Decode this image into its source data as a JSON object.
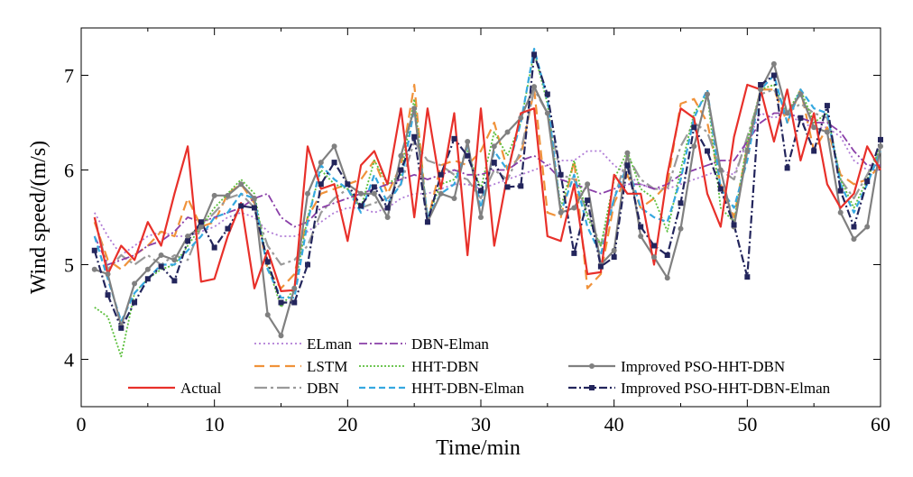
{
  "chart_data": {
    "type": "line",
    "xlabel": "Time/min",
    "ylabel": "Wind speed/(m/s)",
    "xlim": [
      0,
      60
    ],
    "ylim": [
      3.5,
      7.5
    ],
    "xticks": [
      "0",
      "10",
      "20",
      "30",
      "40",
      "50",
      "60"
    ],
    "yticks": [
      "4",
      "5",
      "6",
      "7"
    ],
    "grid": false,
    "legend_position": "bottom",
    "x": [
      1,
      2,
      3,
      4,
      5,
      6,
      7,
      8,
      9,
      10,
      11,
      12,
      13,
      14,
      15,
      16,
      17,
      18,
      19,
      20,
      21,
      22,
      23,
      24,
      25,
      26,
      27,
      28,
      29,
      30,
      31,
      32,
      33,
      34,
      35,
      36,
      37,
      38,
      39,
      40,
      41,
      42,
      43,
      44,
      45,
      46,
      47,
      48,
      49,
      50,
      51,
      52,
      53,
      54,
      55,
      56,
      57,
      58,
      59,
      60
    ],
    "series": [
      {
        "name": "Actual",
        "color": "#e8302a",
        "dash": "",
        "marker": "none",
        "width": 2.2,
        "values": [
          5.5,
          4.9,
          5.2,
          5.05,
          5.45,
          5.2,
          5.75,
          6.25,
          4.82,
          4.85,
          5.3,
          5.65,
          4.75,
          5.15,
          4.72,
          4.73,
          6.25,
          5.8,
          5.85,
          5.25,
          6.05,
          6.2,
          5.85,
          6.65,
          5.5,
          6.65,
          5.8,
          6.6,
          5.1,
          6.65,
          5.2,
          5.95,
          6.6,
          6.65,
          5.3,
          5.25,
          5.85,
          4.9,
          4.92,
          5.95,
          5.75,
          5.75,
          5.0,
          5.95,
          6.65,
          6.55,
          5.75,
          5.4,
          6.35,
          6.9,
          6.85,
          6.3,
          6.85,
          6.1,
          6.6,
          5.85,
          5.6,
          5.75,
          6.25,
          6.0
        ]
      },
      {
        "name": "ELman",
        "color": "#b07cd6",
        "dash": "2 3",
        "marker": "none",
        "width": 1.8,
        "values": [
          5.55,
          5.3,
          5.1,
          5.2,
          5.3,
          5.35,
          5.3,
          5.3,
          5.35,
          5.4,
          5.5,
          5.55,
          5.5,
          5.35,
          5.3,
          5.3,
          5.35,
          5.45,
          5.55,
          5.6,
          5.6,
          5.55,
          5.6,
          5.7,
          5.75,
          5.75,
          5.8,
          5.85,
          5.85,
          5.8,
          5.85,
          5.9,
          5.95,
          6.0,
          6.05,
          6.1,
          6.1,
          6.2,
          6.2,
          6.05,
          5.95,
          5.85,
          5.8,
          5.8,
          5.85,
          5.9,
          5.95,
          6.0,
          5.95,
          6.3,
          6.6,
          6.55,
          6.6,
          6.5,
          6.45,
          6.45,
          6.35,
          6.1,
          6.0,
          6.0
        ]
      },
      {
        "name": "LSTM",
        "color": "#f0923a",
        "dash": "11 6",
        "marker": "none",
        "width": 2.2,
        "values": [
          5.45,
          5.05,
          4.95,
          5.1,
          5.2,
          5.35,
          5.3,
          5.7,
          5.4,
          5.45,
          5.75,
          5.85,
          5.65,
          4.95,
          4.75,
          4.9,
          5.5,
          5.75,
          5.8,
          5.85,
          5.9,
          6.1,
          5.75,
          6.05,
          6.9,
          5.45,
          6.05,
          6.1,
          6.05,
          6.2,
          6.5,
          6.0,
          6.15,
          6.85,
          5.55,
          5.5,
          6.1,
          4.75,
          4.9,
          5.65,
          5.95,
          5.6,
          5.7,
          5.85,
          6.7,
          6.75,
          6.5,
          5.85,
          5.5,
          6.25,
          6.85,
          6.85,
          6.5,
          6.85,
          6.2,
          6.45,
          5.95,
          5.85,
          5.9,
          6.05
        ]
      },
      {
        "name": "DBN",
        "color": "#9a9a9a",
        "dash": "14 4 3 4",
        "marker": "none",
        "width": 2.2,
        "values": [
          5.5,
          4.95,
          5.1,
          5.0,
          5.1,
          5.0,
          5.1,
          5.05,
          5.4,
          5.55,
          5.7,
          5.75,
          5.6,
          5.2,
          5.0,
          5.05,
          5.2,
          5.55,
          5.7,
          5.8,
          5.6,
          5.65,
          5.7,
          5.85,
          6.3,
          6.1,
          6.05,
          5.95,
          5.9,
          5.7,
          6.0,
          5.9,
          6.2,
          6.85,
          6.6,
          5.95,
          5.9,
          5.55,
          5.2,
          5.7,
          6.15,
          5.9,
          5.8,
          5.8,
          6.25,
          6.5,
          6.4,
          6.0,
          5.9,
          6.35,
          6.8,
          6.85,
          6.6,
          6.7,
          6.6,
          6.55,
          5.9,
          5.7,
          5.95,
          6.2
        ]
      },
      {
        "name": "DBN-Elman",
        "color": "#8a3fa8",
        "dash": "9 3 2 3",
        "marker": "none",
        "width": 1.8,
        "values": [
          5.3,
          5.0,
          5.05,
          5.1,
          5.2,
          5.25,
          5.35,
          5.5,
          5.45,
          5.5,
          5.55,
          5.6,
          5.7,
          5.75,
          5.5,
          5.4,
          5.45,
          5.6,
          5.65,
          5.7,
          5.75,
          5.8,
          5.85,
          5.9,
          5.95,
          5.9,
          5.95,
          6.0,
          5.95,
          5.95,
          6.0,
          6.0,
          6.1,
          6.15,
          6.05,
          5.9,
          5.85,
          5.8,
          5.75,
          5.8,
          5.85,
          5.85,
          5.8,
          5.85,
          5.95,
          6.0,
          6.05,
          6.1,
          6.1,
          6.3,
          6.5,
          6.6,
          6.6,
          6.55,
          6.5,
          6.5,
          6.4,
          6.2,
          6.05,
          6.05
        ]
      },
      {
        "name": "HHT-DBN",
        "color": "#5cbf3d",
        "dash": "2 2",
        "marker": "none",
        "width": 1.8,
        "values": [
          4.55,
          4.45,
          4.03,
          4.7,
          4.85,
          4.95,
          5.0,
          5.2,
          5.4,
          5.6,
          5.75,
          5.9,
          5.75,
          5.0,
          4.55,
          4.75,
          5.5,
          6.0,
          5.85,
          5.8,
          5.6,
          6.1,
          5.85,
          5.95,
          6.75,
          5.5,
          5.85,
          5.9,
          6.2,
          5.8,
          6.4,
          6.15,
          6.5,
          7.25,
          6.7,
          5.6,
          6.1,
          5.5,
          5.2,
          5.9,
          6.2,
          5.8,
          5.7,
          5.35,
          6.0,
          6.6,
          6.8,
          5.6,
          5.45,
          6.3,
          6.85,
          6.9,
          6.6,
          6.85,
          6.5,
          6.6,
          5.9,
          5.6,
          5.9,
          6.25
        ]
      },
      {
        "name": "HHT-DBN-Elman",
        "color": "#35a8e0",
        "dash": "7 4",
        "marker": "none",
        "width": 2.2,
        "values": [
          5.3,
          4.85,
          4.4,
          4.7,
          4.85,
          5.0,
          5.0,
          5.15,
          5.3,
          5.5,
          5.55,
          5.75,
          5.7,
          4.95,
          4.65,
          4.65,
          5.45,
          6.05,
          5.9,
          5.8,
          5.55,
          5.95,
          5.65,
          5.85,
          6.65,
          5.5,
          5.75,
          5.85,
          6.25,
          5.6,
          6.2,
          6.0,
          6.5,
          7.28,
          6.75,
          5.55,
          5.95,
          5.4,
          5.1,
          5.7,
          6.05,
          5.6,
          5.5,
          5.45,
          5.9,
          6.55,
          6.85,
          5.8,
          5.6,
          6.1,
          6.85,
          7.0,
          6.5,
          6.85,
          6.65,
          6.6,
          5.85,
          5.55,
          5.85,
          6.2
        ]
      },
      {
        "name": "Improved PSO-HHT-DBN",
        "color": "#808080",
        "dash": "",
        "marker": "circle",
        "width": 2.2,
        "values": [
          4.95,
          4.9,
          4.35,
          4.8,
          4.95,
          5.1,
          5.05,
          5.3,
          5.4,
          5.73,
          5.73,
          5.85,
          5.7,
          4.47,
          4.25,
          4.75,
          5.75,
          6.08,
          6.25,
          5.85,
          5.75,
          5.75,
          5.5,
          6.15,
          6.65,
          5.45,
          5.75,
          5.7,
          6.3,
          5.5,
          6.25,
          6.4,
          6.55,
          6.88,
          6.6,
          5.55,
          5.6,
          5.85,
          5.0,
          5.15,
          6.18,
          5.3,
          5.08,
          4.86,
          5.38,
          6.25,
          6.8,
          6.0,
          5.4,
          6.2,
          6.85,
          7.12,
          6.6,
          6.8,
          6.45,
          6.4,
          5.55,
          5.27,
          5.4,
          6.25
        ]
      },
      {
        "name": "Improved PSO-HHT-DBN-Elman",
        "color": "#23255c",
        "dash": "9 3 2 3",
        "marker": "square",
        "width": 2.2,
        "values": [
          5.15,
          4.68,
          4.33,
          4.6,
          4.85,
          4.98,
          4.83,
          5.25,
          5.45,
          5.18,
          5.38,
          5.62,
          5.6,
          5.03,
          4.6,
          4.6,
          5.0,
          5.85,
          6.08,
          5.85,
          5.62,
          5.82,
          5.6,
          6.0,
          6.35,
          5.45,
          5.95,
          6.33,
          6.15,
          5.78,
          6.08,
          5.82,
          5.83,
          7.22,
          6.8,
          5.95,
          5.12,
          5.68,
          4.98,
          5.08,
          6.05,
          5.4,
          5.2,
          5.1,
          5.65,
          6.45,
          6.2,
          5.8,
          5.42,
          4.87,
          6.9,
          7.0,
          6.02,
          6.55,
          6.2,
          6.68,
          5.78,
          5.4,
          5.88,
          6.32
        ]
      }
    ]
  }
}
